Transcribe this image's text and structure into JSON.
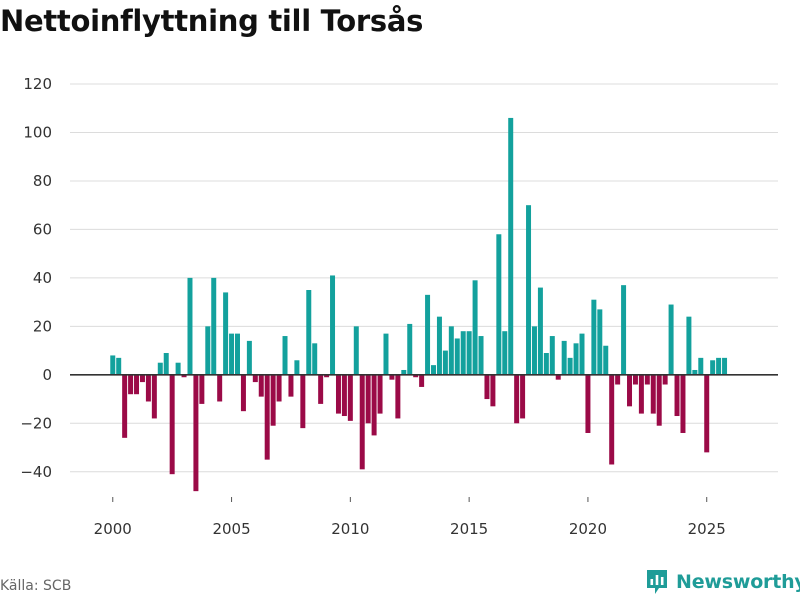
{
  "chart_data": {
    "type": "bar",
    "title": "Nettoinflyttning till Torsås",
    "source": "Källa: SCB",
    "brand": "Newsworthy",
    "xlabel": "",
    "ylabel": "",
    "ylim": [
      -50,
      120
    ],
    "yticks": [
      120,
      100,
      80,
      60,
      40,
      20,
      0,
      -20,
      -40
    ],
    "xlim": [
      1998.2,
      2028.0
    ],
    "xticks": [
      2000,
      2005,
      2010,
      2015,
      2020,
      2025
    ],
    "grid": true,
    "colors": {
      "positive": "#13a19d",
      "negative": "#9b0a47",
      "grid": "#dcdcdc",
      "zero": "#333333",
      "text": "#333333"
    },
    "start": "2000 Q1",
    "frequency": "quarterly",
    "values": [
      8,
      7,
      -26,
      -8,
      -8,
      -3,
      -11,
      -18,
      5,
      9,
      -41,
      5,
      -1,
      40,
      -48,
      -12,
      20,
      40,
      -11,
      34,
      17,
      17,
      -15,
      14,
      -3,
      -9,
      -35,
      -21,
      -11,
      16,
      -9,
      6,
      -22,
      35,
      13,
      -12,
      -1,
      41,
      -16,
      -17,
      -19,
      20,
      -39,
      -20,
      -25,
      -16,
      17,
      -2,
      -18,
      2,
      21,
      -1,
      -5,
      33,
      4,
      24,
      10,
      20,
      15,
      18,
      18,
      39,
      16,
      -10,
      -13,
      58,
      18,
      106,
      -20,
      -18,
      70,
      20,
      36,
      9,
      16,
      -2,
      14,
      7,
      13,
      17,
      -24,
      31,
      27,
      12,
      -37,
      -4,
      37,
      -13,
      -4,
      -16,
      -4,
      -16,
      -21,
      -4,
      29,
      -17,
      -24,
      24,
      2,
      7,
      -32,
      6,
      7,
      7
    ]
  }
}
